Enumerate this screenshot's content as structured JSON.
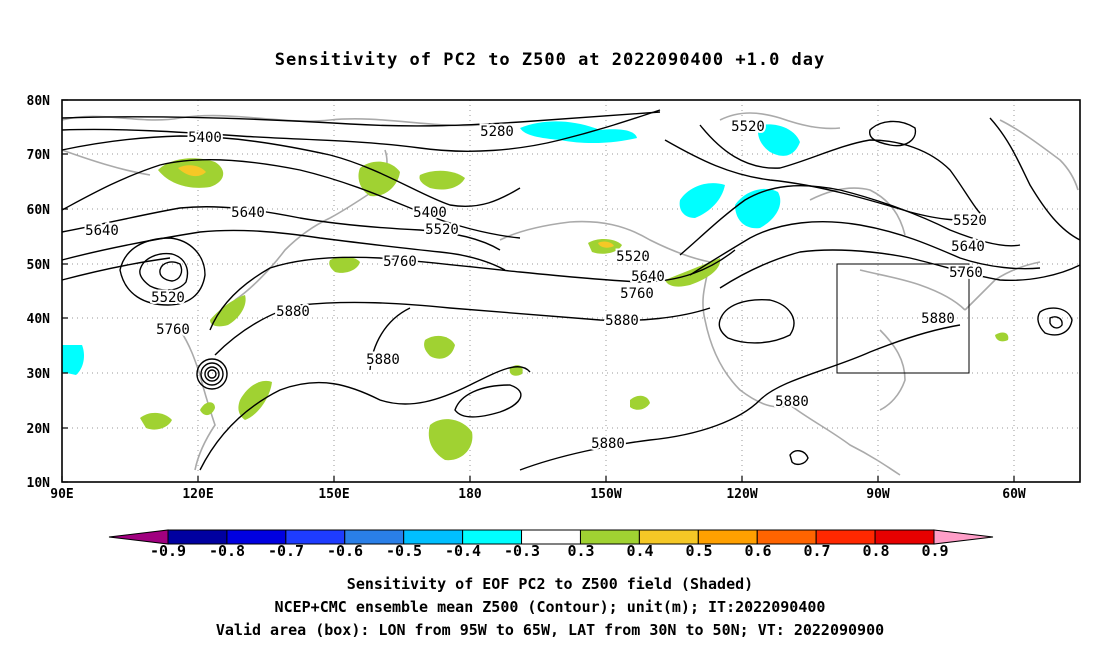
{
  "title": "Sensitivity of PC2 to Z500 at 2022090400 +1.0 day",
  "map": {
    "lat_labels": [
      "80N",
      "70N",
      "60N",
      "50N",
      "40N",
      "30N",
      "20N",
      "10N"
    ],
    "lon_labels": [
      "90E",
      "120E",
      "150E",
      "180",
      "150W",
      "120W",
      "90W",
      "60W"
    ],
    "contour_labels": {
      "c5400a": "5400",
      "c5280": "5280",
      "c5520a": "5520",
      "c5640a": "5640",
      "c5640b": "5640",
      "c5400b": "5400",
      "c5520b": "5520",
      "c5520c": "5520",
      "c5760a": "5760",
      "c5640c": "5640",
      "c5760b": "5760",
      "c5880a": "5880",
      "c5880b": "5880",
      "c5880c": "5880",
      "c5880d": "5880",
      "c5880e": "5880",
      "c5520d": "5520",
      "c5640d": "5640",
      "c5760c": "5760",
      "c5880f": "5880",
      "c5520e": "5520",
      "c5760d": "5760"
    },
    "valid_box": {
      "lon_min": "95W",
      "lon_max": "65W",
      "lat_min": "30N",
      "lat_max": "50N"
    }
  },
  "colorbar": {
    "labels": [
      "-0.9",
      "-0.8",
      "-0.7",
      "-0.6",
      "-0.5",
      "-0.4",
      "-0.3",
      "0.3",
      "0.4",
      "0.5",
      "0.6",
      "0.7",
      "0.8",
      "0.9"
    ],
    "colors": [
      "#a0007f",
      "#0000a0",
      "#0000e0",
      "#1e3cff",
      "#2a7fe8",
      "#00bfff",
      "#00ffff",
      "#ffffff",
      "#a0d232",
      "#f5c826",
      "#ffa000",
      "#ff6400",
      "#ff2800",
      "#e60000",
      "#ff9ec8"
    ]
  },
  "captions": {
    "line1": "Sensitivity of EOF PC2 to Z500 field (Shaded)",
    "line2": "NCEP+CMC ensemble mean Z500 (Contour); unit(m); IT:2022090400",
    "line3": "Valid area (box): LON from 95W to 65W, LAT from 30N to 50N; VT: 2022090900"
  }
}
